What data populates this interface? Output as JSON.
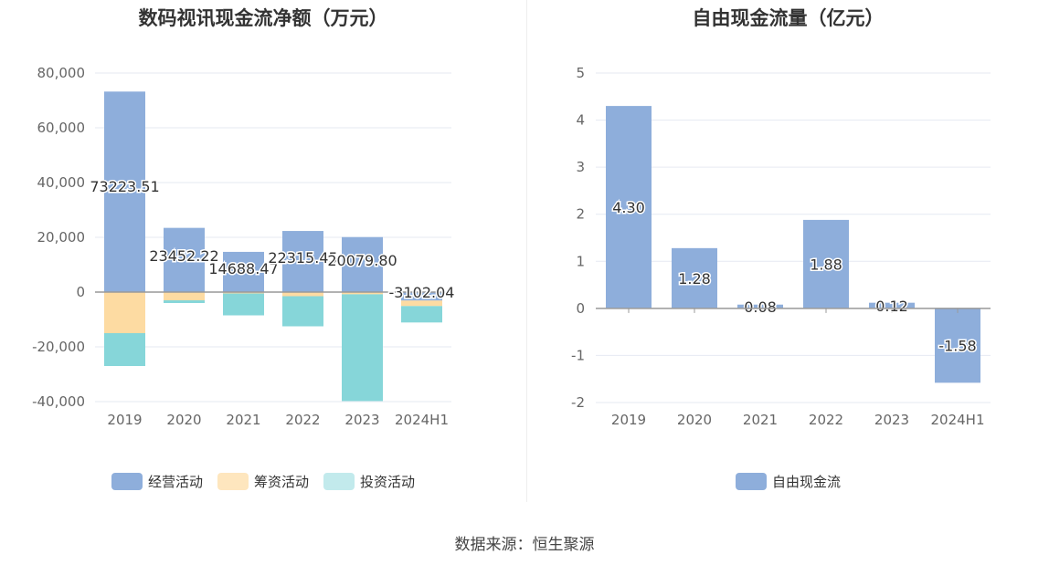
{
  "charts": {
    "left_title": "数码视讯现金流净额（万元）",
    "right_title": "自由现金流量（亿元）",
    "source": "数据来源：恒生聚源"
  },
  "colors": {
    "operating": "#8eaedb",
    "financing": "#fddba2",
    "investing": "#86d6d9",
    "fcf": "#8eaedb",
    "axis": "#999999",
    "grid": "#e6e9f2"
  },
  "chart_data": [
    {
      "type": "bar",
      "stacked": true,
      "title": "数码视讯现金流净额（万元）",
      "categories": [
        "2019",
        "2020",
        "2021",
        "2022",
        "2023",
        "2024H1"
      ],
      "ylim": [
        -40000,
        80000
      ],
      "yticks": [
        "80,000",
        "60,000",
        "40,000",
        "20,000",
        "0",
        "-20,000",
        "-40,000"
      ],
      "ytick_values": [
        80000,
        60000,
        40000,
        20000,
        0,
        -20000,
        -40000
      ],
      "grid": true,
      "legend_position": "bottom",
      "series": [
        {
          "name": "经营活动",
          "values": [
            73223.51,
            23452.22,
            14688.47,
            22315.45,
            20079.8,
            -3102.04
          ],
          "labels": [
            "73223.51",
            "23452.22",
            "14688.47",
            "22315.45",
            "20079.80",
            "-3102.04"
          ]
        },
        {
          "name": "筹资活动",
          "values": [
            -15000,
            -3000,
            -500,
            -1500,
            -800,
            -2000
          ]
        },
        {
          "name": "投资活动",
          "values": [
            -12000,
            -1000,
            -8000,
            -11000,
            -39000,
            -6000
          ]
        }
      ]
    },
    {
      "type": "bar",
      "title": "自由现金流量（亿元）",
      "categories": [
        "2019",
        "2020",
        "2021",
        "2022",
        "2023",
        "2024H1"
      ],
      "ylim": [
        -2,
        5
      ],
      "yticks": [
        "5",
        "4",
        "3",
        "2",
        "1",
        "0",
        "-1",
        "-2"
      ],
      "ytick_values": [
        5,
        4,
        3,
        2,
        1,
        0,
        -1,
        -2
      ],
      "grid": true,
      "legend_position": "bottom",
      "series": [
        {
          "name": "自由现金流",
          "values": [
            4.3,
            1.28,
            0.08,
            1.88,
            0.12,
            -1.58
          ],
          "labels": [
            "4.30",
            "1.28",
            "0.08",
            "1.88",
            "0.12",
            "-1.58"
          ]
        }
      ]
    }
  ]
}
